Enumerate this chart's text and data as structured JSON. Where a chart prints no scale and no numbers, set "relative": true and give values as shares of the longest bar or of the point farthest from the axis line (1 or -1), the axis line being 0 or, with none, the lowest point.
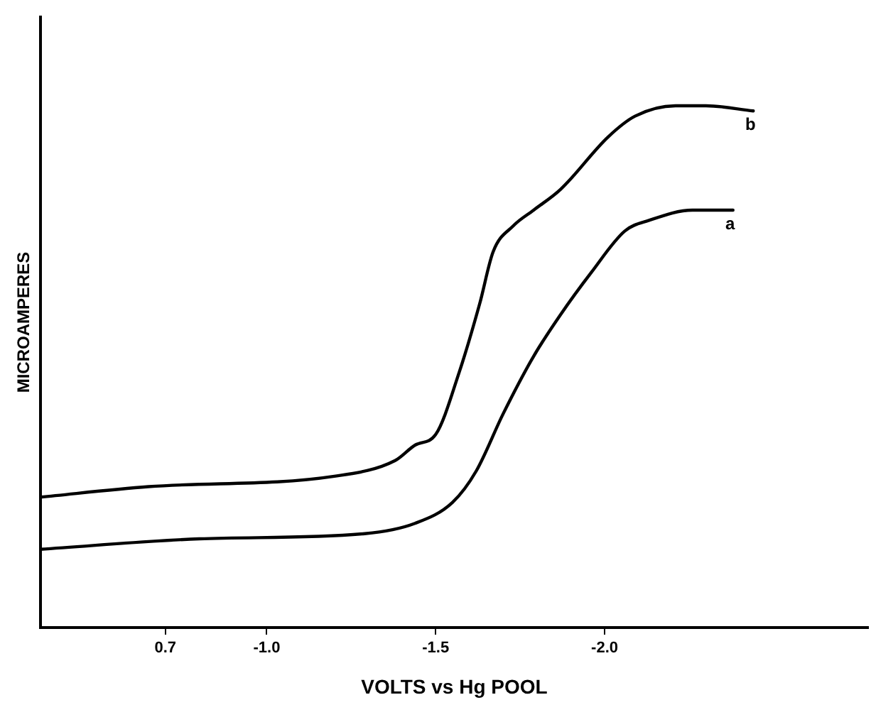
{
  "chart_data": {
    "type": "line",
    "xlabel": "VOLTS vs Hg POOL",
    "ylabel": "MICROAMPERES",
    "relative": true,
    "xlim": [
      -0.33,
      -2.78
    ],
    "xticks": [
      {
        "value": -0.7,
        "label": "0.7"
      },
      {
        "value": -1.0,
        "label": "-1.0"
      },
      {
        "value": -1.5,
        "label": "-1.5"
      },
      {
        "value": -2.0,
        "label": "-2.0"
      }
    ],
    "grid": false,
    "legend": false,
    "marker": "none",
    "line_style": "solid",
    "series": [
      {
        "name": "b",
        "color": "#000000",
        "x": [
          -0.33,
          -0.65,
          -1.2,
          -1.38,
          -1.44,
          -1.5,
          -1.57,
          -1.63,
          -1.67,
          -1.73,
          -1.79,
          -1.87,
          -2.01,
          -2.09,
          -2.21,
          -2.3,
          -2.44
        ],
        "values": [
          0.25,
          0.27,
          0.29,
          0.32,
          0.35,
          0.37,
          0.49,
          0.62,
          0.72,
          0.77,
          0.8,
          0.84,
          0.94,
          0.98,
          1.0,
          1.0,
          0.99
        ]
      },
      {
        "name": "a",
        "color": "#000000",
        "x": [
          -0.33,
          -0.8,
          -1.29,
          -1.44,
          -1.55,
          -1.62,
          -1.7,
          -1.79,
          -1.87,
          -1.96,
          -2.06,
          -2.13,
          -2.26,
          -2.38
        ],
        "values": [
          0.15,
          0.17,
          0.18,
          0.2,
          0.24,
          0.3,
          0.41,
          0.52,
          0.6,
          0.68,
          0.76,
          0.78,
          0.8,
          0.8
        ]
      }
    ]
  }
}
